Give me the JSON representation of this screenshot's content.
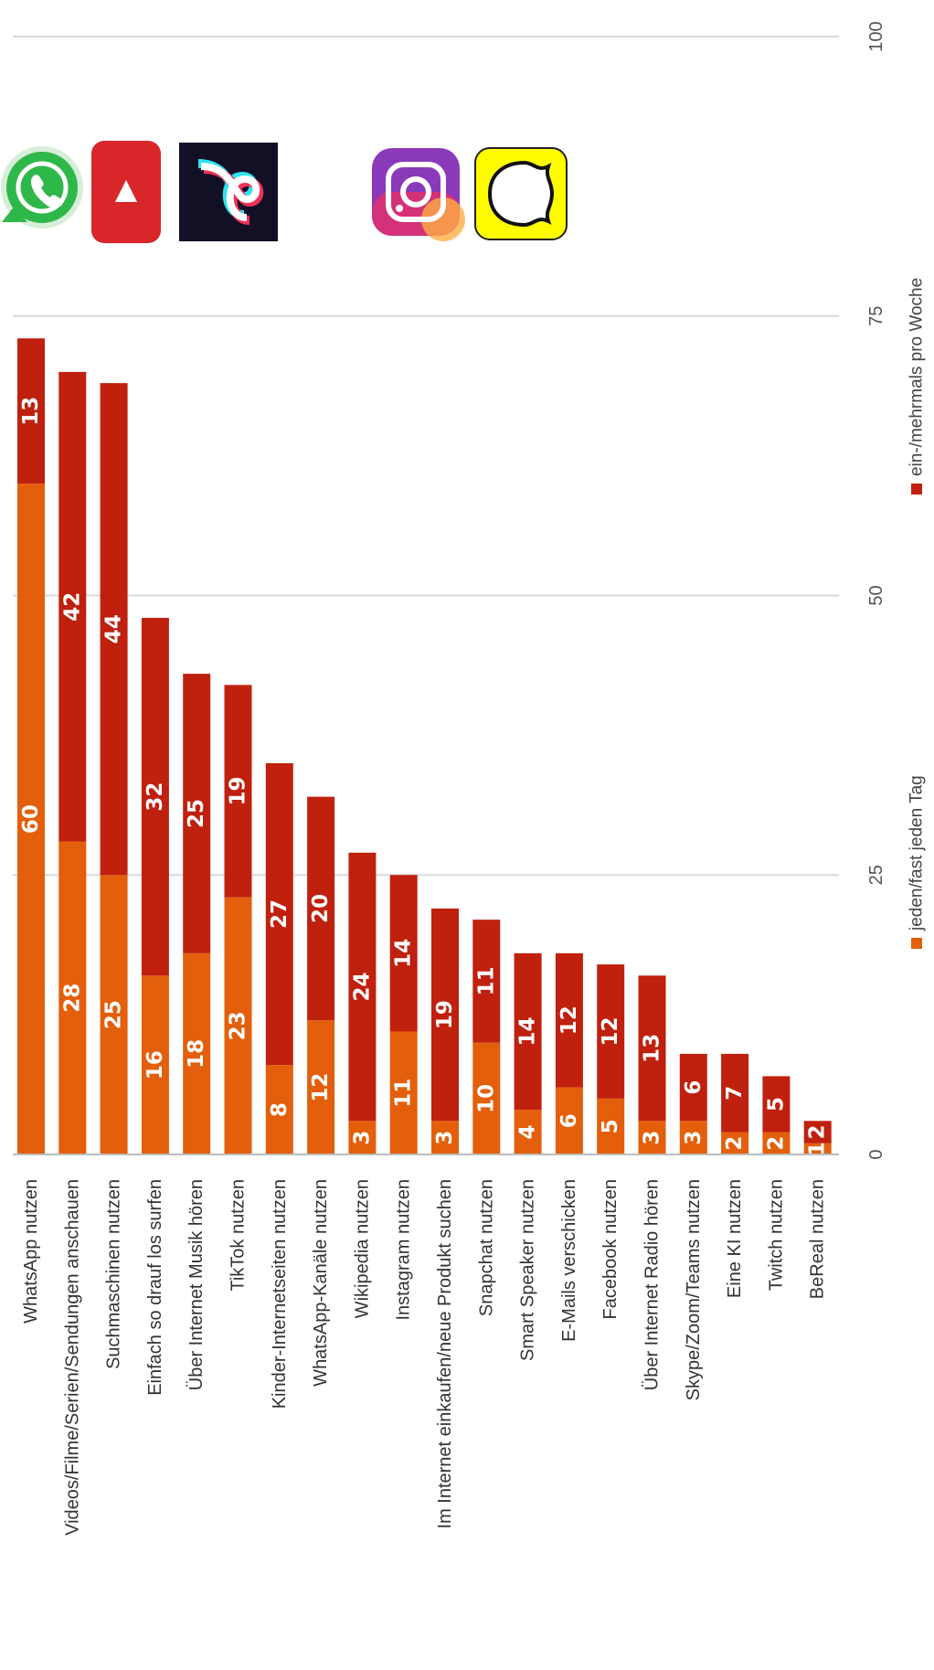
{
  "chart_data": {
    "type": "bar",
    "orientation": "stacked bars, rotated (axis reads bottom-to-top)",
    "categories": [
      "WhatsApp nutzen",
      "Videos/Filme/Serien/Sendungen anschauen",
      "Suchmaschinen nutzen",
      "Einfach so drauf los surfen",
      "Über Internet Musik hören",
      "TikTok nutzen",
      "Kinder-Internetseiten nutzen",
      "WhatsApp-Kanäle nutzen",
      "Wikipedia nutzen",
      "Instagram nutzen",
      "Im Internet einkaufen/neue Produkt suchen",
      "Snapchat nutzen",
      "Smart Speaker nutzen",
      "E-Mails verschicken",
      "Facebook nutzen",
      "Über Internet Radio hören",
      "Skype/Zoom/Teams nutzen",
      "Eine KI nutzen",
      "Twitch nutzen",
      "BeReal nutzen"
    ],
    "series": [
      {
        "name": "jeden/fast jeden Tag",
        "color": "#e35f0b",
        "values": [
          60,
          28,
          25,
          16,
          18,
          23,
          8,
          12,
          3,
          11,
          3,
          10,
          4,
          6,
          5,
          3,
          3,
          2,
          2,
          1
        ],
        "labels": [
          "60",
          "28",
          "25",
          "16",
          "18",
          "23",
          "8",
          "12",
          "3",
          "11",
          "3",
          "10",
          "4",
          "6",
          "5",
          "3",
          "3",
          "2",
          "2",
          "1"
        ]
      },
      {
        "name": "ein-/mehrmals pro Woche",
        "color": "#c0200e",
        "values": [
          13,
          42,
          44,
          32,
          25,
          19,
          27,
          20,
          24,
          14,
          19,
          11,
          14,
          12,
          12,
          13,
          6,
          7,
          5,
          2
        ],
        "labels": [
          "13",
          "42",
          "44",
          "32",
          "25",
          "19",
          "27",
          "20",
          "24",
          "14",
          "19",
          "11",
          "14",
          "12",
          "12",
          "13",
          "6",
          "7",
          "5",
          "2"
        ]
      }
    ],
    "ticks": [
      "0",
      "25",
      "50",
      "75",
      "100"
    ],
    "tick_values": [
      0,
      25,
      50,
      75,
      100
    ],
    "ylim": [
      0,
      100
    ],
    "grid": true,
    "legend_position": "bottom",
    "icons": [
      "whatsapp-icon",
      "youtube-icon",
      "tiktok-icon",
      "instagram-icon",
      "snapchat-icon"
    ]
  }
}
